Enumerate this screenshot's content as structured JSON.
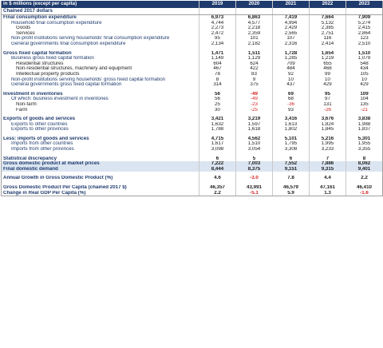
{
  "header": {
    "unit_label": "in $ millions (except per capita)",
    "sub_label": "Chained 2017 dollars",
    "years": [
      "2019",
      "2020",
      "2021",
      "2022",
      "2023"
    ]
  },
  "rows": [
    {
      "label": "Final consumption expenditure",
      "level": 0,
      "values": [
        "6,973",
        "6,863",
        "7,419",
        "7,664",
        "7,909"
      ]
    },
    {
      "label": "Household final consumption expenditure",
      "level": 1,
      "values": [
        "4,744",
        "4,577",
        "4,994",
        "5,132",
        "5,274"
      ]
    },
    {
      "label": "Goods",
      "level": 2,
      "values": [
        "2,273",
        "2,218",
        "2,429",
        "2,385",
        "2,415"
      ]
    },
    {
      "label": "Services",
      "level": 2,
      "values": [
        "2,472",
        "2,359",
        "2,565",
        "2,751",
        "2,864"
      ]
    },
    {
      "label": "Non-profit institutions serving households' final consumption expenditure",
      "level": 1,
      "values": [
        "95",
        "101",
        "107",
        "116",
        "123"
      ]
    },
    {
      "label": "General governments final consumption expenditure",
      "level": 1,
      "values": [
        "2,134",
        "2,182",
        "2,316",
        "2,414",
        "2,510"
      ]
    },
    {
      "spacer": true
    },
    {
      "label": "Gross fixed capital formation",
      "level": 0,
      "values": [
        "1,471",
        "1,511",
        "1,728",
        "1,654",
        "1,510"
      ]
    },
    {
      "label": "Business gross fixed capital formation",
      "level": 1,
      "values": [
        "1,149",
        "1,129",
        "1,285",
        "1,219",
        "1,079"
      ]
    },
    {
      "label": "Residential structures",
      "level": 2,
      "values": [
        "604",
        "624",
        "709",
        "655",
        "548"
      ]
    },
    {
      "label": "Non-residential structures, machinery and equipment",
      "level": 2,
      "values": [
        "467",
        "422",
        "484",
        "468",
        "434"
      ]
    },
    {
      "label": "Intellectual property products",
      "level": 2,
      "values": [
        "78",
        "83",
        "92",
        "99",
        "105"
      ]
    },
    {
      "label": "Non-profit institutions serving households' gross fixed capital formation",
      "level": 1,
      "values": [
        "8",
        "9",
        "10",
        "10",
        "10"
      ]
    },
    {
      "label": "General governments gross fixed capital formation",
      "level": 1,
      "values": [
        "314",
        "375",
        "437",
        "429",
        "429"
      ]
    },
    {
      "spacer": true
    },
    {
      "label": "Investment in inventories",
      "level": 0,
      "values": [
        "56",
        "-49",
        "69",
        "95",
        "109"
      ]
    },
    {
      "label": "Of which: business investment in inventories",
      "level": 1,
      "values": [
        "56",
        "-49",
        "68",
        "97",
        "104"
      ]
    },
    {
      "label": "Non-farm",
      "level": 2,
      "values": [
        "25",
        "-23",
        "-36",
        "131",
        "135"
      ]
    },
    {
      "label": "Farm",
      "level": 2,
      "values": [
        "30",
        "-25",
        "93",
        "-26",
        "-21"
      ]
    },
    {
      "spacer": true
    },
    {
      "label": "Exports of goods and services",
      "level": 0,
      "values": [
        "3,421",
        "3,219",
        "3,416",
        "3,676",
        "3,838"
      ]
    },
    {
      "label": "Exports to other countries",
      "level": 1,
      "values": [
        "1,632",
        "1,597",
        "1,613",
        "1,824",
        "1,988"
      ]
    },
    {
      "label": "Exports to other provinces",
      "level": 1,
      "values": [
        "1,788",
        "1,618",
        "1,802",
        "1,845",
        "1,837"
      ]
    },
    {
      "spacer": true
    },
    {
      "label": "Less: imports of goods and services",
      "level": 0,
      "values": [
        "4,715",
        "4,562",
        "5,101",
        "5,216",
        "5,301"
      ]
    },
    {
      "label": "Imports from other countries",
      "level": 1,
      "values": [
        "1,617",
        "1,510",
        "1,795",
        "1,995",
        "1,955"
      ]
    },
    {
      "label": "Imports from other provinces",
      "level": 1,
      "values": [
        "3,098",
        "3,054",
        "3,308",
        "3,233",
        "3,355"
      ]
    },
    {
      "spacer": true
    },
    {
      "label": "Statistical discrepancy",
      "level": 0,
      "values": [
        "6",
        "5",
        "6",
        "7",
        "8"
      ]
    },
    {
      "label": "Gross domestic product at market prices",
      "level": 0,
      "highlight": true,
      "values": [
        "7,222",
        "7,003",
        "7,552",
        "7,886",
        "8,062"
      ]
    },
    {
      "label": "Final domestic demand",
      "level": 0,
      "highlight": true,
      "values": [
        "8,444",
        "8,375",
        "9,151",
        "9,315",
        "9,401"
      ]
    },
    {
      "spacer": true
    },
    {
      "label": "Annual Growth in Gross Domestic Product (%)",
      "level": 0,
      "values": [
        "4.6",
        "-3.0",
        "7.8",
        "4.4",
        "2.2"
      ]
    },
    {
      "spacer": true
    },
    {
      "label": "Gross Domestic Product Per Capita (chained 2017 $)",
      "level": 0,
      "values": [
        "46,357",
        "43,991",
        "46,579",
        "47,161",
        "46,410"
      ]
    },
    {
      "label": "Change in Real GDP Per Capita (%)",
      "level": 0,
      "last": true,
      "values": [
        "2.2",
        "-5.1",
        "5.9",
        "1.3",
        "-1.6"
      ]
    }
  ],
  "colors": {
    "header_bg": "#1f3b6e",
    "label_text": "#1f3b6e",
    "negative": "#d42121",
    "highlight_bg": "#dbe5f1"
  }
}
